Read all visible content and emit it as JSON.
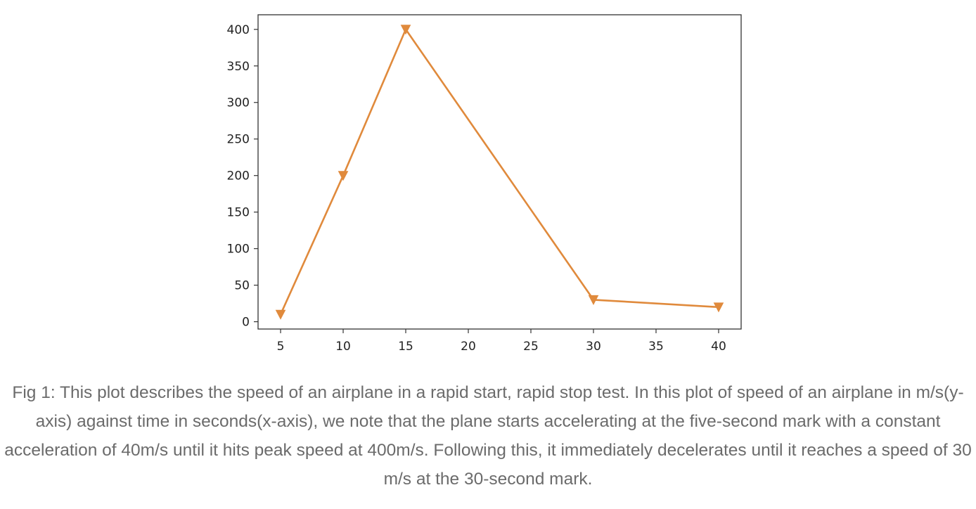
{
  "chart_data": {
    "type": "line",
    "title": "",
    "xlabel": "",
    "ylabel": "",
    "x": [
      5,
      10,
      15,
      30,
      40
    ],
    "series": [
      {
        "values": [
          10,
          200,
          400,
          30,
          20
        ]
      }
    ],
    "xticks": [
      5,
      10,
      15,
      20,
      25,
      30,
      35,
      40
    ],
    "yticks": [
      0,
      50,
      100,
      150,
      200,
      250,
      300,
      350,
      400
    ],
    "xlim": [
      3.2,
      41.8
    ],
    "ylim": [
      -10,
      420
    ],
    "marker": "triangle-down",
    "grid": false,
    "legend": "none",
    "color": "#e08a3c"
  },
  "caption": "Fig 1: This plot describes the speed of an airplane in a rapid start, rapid stop test. In this plot of speed of an airplane in m/s(y-axis) against time in seconds(x-axis), we note that the plane starts accelerating at the five-second mark with a constant acceleration of 40m/s until it hits peak speed at 400m/s. Following this, it immediately decelerates until it reaches a speed of 30 m/s at the 30-second mark."
}
